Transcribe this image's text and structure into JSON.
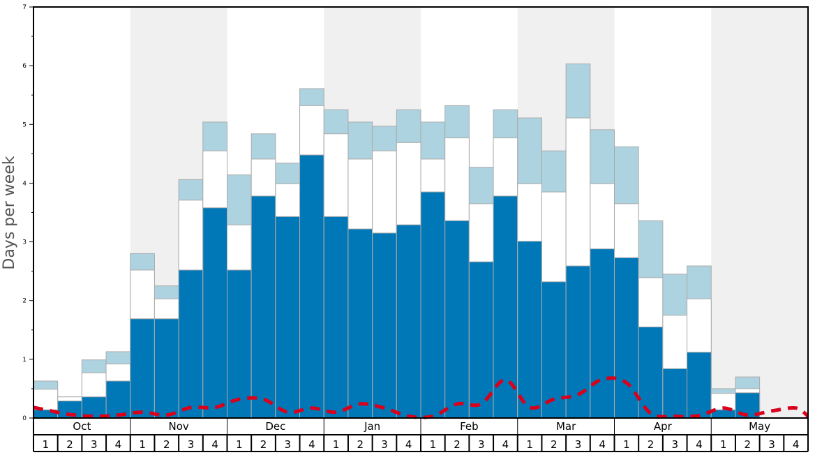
{
  "chart_data": {
    "type": "bar",
    "stacked": true,
    "title": "",
    "ylabel": "Days per week",
    "xlabel": "",
    "ylim": [
      0,
      7
    ],
    "yticks": [
      "0",
      "1",
      "2",
      "3",
      "4",
      "5",
      "6",
      "7"
    ],
    "months": [
      "Oct",
      "Nov",
      "Dec",
      "Jan",
      "Feb",
      "Mar",
      "Apr",
      "May"
    ],
    "weeks": [
      "1",
      "2",
      "3",
      "4"
    ],
    "colors": {
      "dark": "#0077b6",
      "white": "#ffffff",
      "light": "#add3e0",
      "line": "#d9001b",
      "shade": "#f0f0f0",
      "edge": "#aaaaaa"
    },
    "series": [
      {
        "name": "dark",
        "totals": [
          0.14,
          0.29,
          0.36,
          0.63,
          1.69,
          1.69,
          2.52,
          3.58,
          2.52,
          3.78,
          3.43,
          4.48,
          3.43,
          3.22,
          3.15,
          3.29,
          3.85,
          3.36,
          2.66,
          3.78,
          3.01,
          2.32,
          2.59,
          2.88,
          2.73,
          1.55,
          0.84,
          1.12,
          0.14,
          0.43,
          0,
          0
        ]
      },
      {
        "name": "white",
        "totals": [
          0.49,
          0.36,
          0.77,
          0.92,
          2.52,
          2.03,
          3.71,
          4.55,
          3.29,
          4.41,
          3.99,
          5.32,
          4.84,
          4.41,
          4.55,
          4.69,
          4.41,
          4.77,
          3.65,
          4.77,
          3.99,
          3.85,
          5.11,
          3.99,
          3.65,
          2.39,
          1.75,
          2.03,
          0.42,
          0.5,
          0,
          0
        ]
      },
      {
        "name": "light",
        "totals": [
          0.63,
          0.36,
          0.99,
          1.13,
          2.8,
          2.25,
          4.06,
          5.04,
          4.14,
          4.84,
          4.34,
          5.61,
          5.25,
          5.04,
          4.97,
          5.25,
          5.04,
          5.32,
          4.27,
          5.25,
          5.11,
          4.55,
          6.03,
          4.91,
          4.62,
          3.36,
          2.45,
          2.59,
          0.5,
          0.7,
          0,
          0
        ]
      }
    ],
    "line": {
      "name": "dashed",
      "start": 0.18,
      "end": 0.03,
      "values": [
        0.14,
        0.06,
        0.03,
        0.05,
        0.1,
        0.05,
        0.18,
        0.18,
        0.32,
        0.32,
        0.1,
        0.17,
        0.1,
        0.24,
        0.17,
        0.03,
        0.03,
        0.24,
        0.24,
        0.65,
        0.18,
        0.32,
        0.4,
        0.66,
        0.6,
        0.08,
        0.03,
        0.04,
        0.17,
        0.05,
        0.12,
        0.17
      ]
    }
  }
}
